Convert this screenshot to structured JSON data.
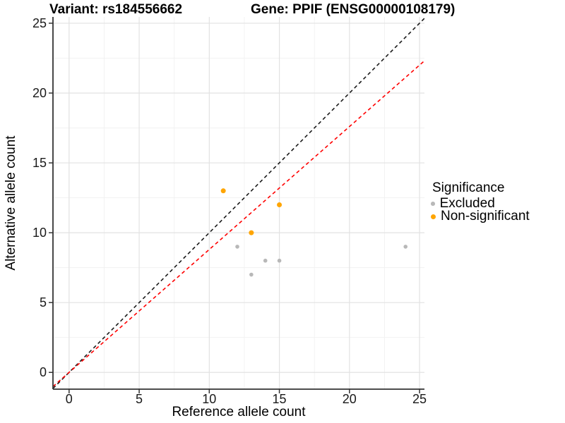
{
  "chart_data": {
    "type": "scatter",
    "titles": {
      "left": "Variant: rs184556662",
      "right": "Gene: PPIF (ENSG00000108179)"
    },
    "xlabel": "Reference allele count",
    "ylabel": "Alternative allele count",
    "xticks": [
      0,
      5,
      10,
      15,
      20,
      25
    ],
    "yticks": [
      0,
      5,
      10,
      15,
      20,
      25
    ],
    "xminor": [
      2.5,
      7.5,
      12.5,
      17.5,
      22.5
    ],
    "yminor": [
      2.5,
      7.5,
      12.5,
      17.5,
      22.5
    ],
    "xlim": [
      -1.15,
      25.35
    ],
    "ylim": [
      -1.2,
      25.45
    ],
    "grid": {
      "major_color": "#e2e2e2",
      "minor_color": "#f1f1f1",
      "background": "#ffffff"
    },
    "axis_color": "#333333",
    "series": [
      {
        "name": "Excluded",
        "color": "#b8b8b8",
        "size": 5.6,
        "points": [
          [
            12,
            9
          ],
          [
            13,
            7
          ],
          [
            14,
            8
          ],
          [
            15,
            8
          ],
          [
            24,
            9
          ]
        ]
      },
      {
        "name": "Non-significant",
        "color": "#ffa500",
        "size": 7,
        "points": [
          [
            11,
            13
          ],
          [
            13,
            10
          ],
          [
            15,
            12
          ]
        ]
      }
    ],
    "lines": [
      {
        "name": "identity-line",
        "color": "#1a1a1a",
        "slope": 1,
        "intercept": 0,
        "dash": "5 4"
      },
      {
        "name": "expected-ratio-line",
        "color": "#ff0000",
        "slope": 0.88,
        "intercept": 0,
        "dash": "5 4"
      }
    ],
    "legend": {
      "title": "Significance",
      "entries": [
        {
          "label": "Excluded",
          "color": "#b8b8b8",
          "size": 5.6
        },
        {
          "label": "Non-significant",
          "color": "#ffa500",
          "size": 7
        }
      ]
    }
  }
}
